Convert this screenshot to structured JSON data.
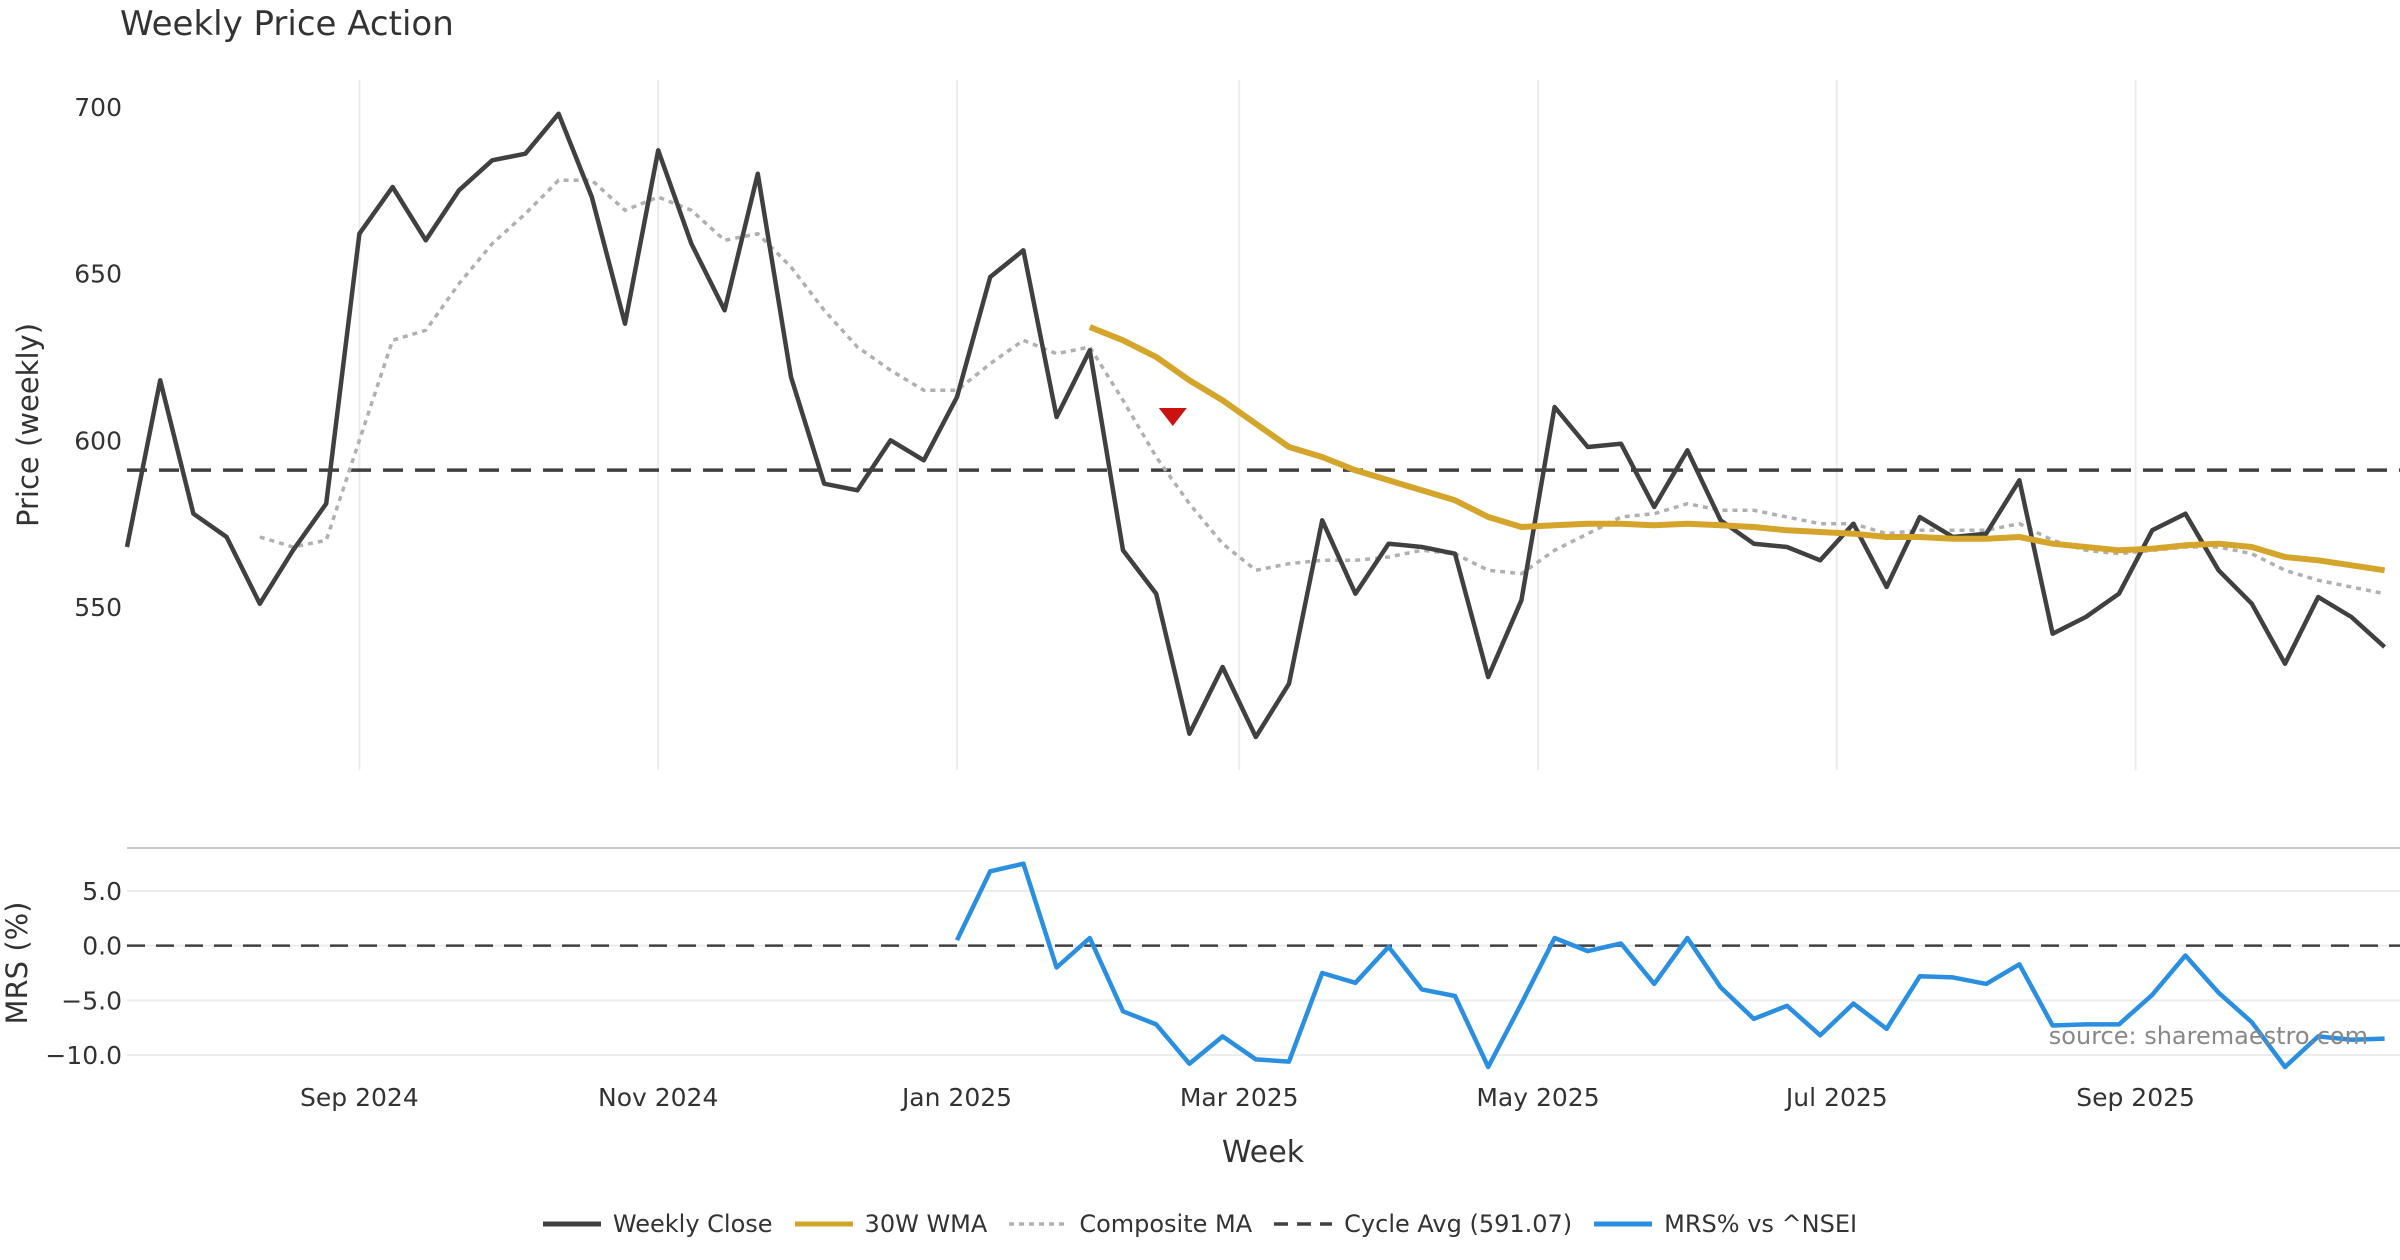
{
  "chart_data": {
    "title": "Weekly Price Action",
    "source_text": "source: sharemaestro.com",
    "xlabel": "Week",
    "x_tick_labels": [
      "Sep 2024",
      "Nov 2024",
      "Jan 2025",
      "Mar 2025",
      "May 2025",
      "Jul 2025",
      "Sep 2025"
    ],
    "x_tick_weeks": [
      7,
      16,
      25,
      33.5,
      42.5,
      51.5,
      60.5
    ],
    "price_panel": {
      "type": "line",
      "ylabel": "Price (weekly)",
      "ylim": [
        502,
        710
      ],
      "y_ticks": [
        550,
        600,
        650,
        700
      ],
      "cycle_avg": 591.07,
      "signal_marker": {
        "week": 31.5,
        "value": 607,
        "type": "sell"
      },
      "weekly_close": [
        568,
        618,
        578,
        571,
        551,
        567,
        581,
        662,
        676,
        660,
        675,
        684,
        686,
        698,
        673,
        635,
        687,
        659,
        639,
        680,
        619,
        587,
        585,
        600,
        594,
        613,
        649,
        657,
        607,
        627,
        567,
        554,
        512,
        532,
        511,
        527,
        576,
        554,
        569,
        568,
        566,
        529,
        552,
        610,
        598,
        599,
        580,
        597,
        576,
        569,
        568,
        564,
        575,
        556,
        577,
        571,
        572,
        588,
        542,
        547,
        554,
        573,
        578,
        561,
        551,
        533,
        553,
        547,
        538
      ],
      "wma_30w": [
        null,
        null,
        null,
        null,
        null,
        null,
        null,
        null,
        null,
        null,
        null,
        null,
        null,
        null,
        null,
        null,
        null,
        null,
        null,
        null,
        null,
        null,
        null,
        null,
        null,
        null,
        null,
        null,
        null,
        634,
        630,
        625,
        618,
        612,
        605,
        598,
        595,
        591,
        588,
        585,
        582,
        577,
        574,
        574.5,
        575,
        575,
        574.5,
        575,
        574.5,
        574,
        573,
        572.5,
        572,
        571,
        571,
        570.5,
        570.5,
        571,
        569,
        568,
        567,
        567.5,
        568.5,
        569,
        568,
        565,
        564,
        562.5,
        561
      ],
      "composite_ma": [
        null,
        null,
        null,
        null,
        571,
        568,
        570,
        600,
        630,
        633,
        647,
        659,
        668,
        678,
        678,
        669,
        673,
        669,
        660,
        662,
        652,
        639,
        628,
        621,
        615,
        615,
        623,
        630,
        626,
        628,
        612,
        595,
        581,
        569,
        561,
        563,
        564,
        564,
        565,
        567,
        566,
        561,
        560,
        567,
        572,
        577,
        578,
        581,
        579,
        579,
        577,
        575,
        575,
        572,
        573,
        573,
        573,
        575,
        570,
        567,
        566,
        567,
        568,
        568,
        566,
        561,
        558,
        556,
        554
      ]
    },
    "mrs_panel": {
      "type": "line",
      "ylabel": "MRS (%)",
      "ylim": [
        -12,
        9
      ],
      "y_ticks": [
        5.0,
        0.0,
        -5.0,
        -10.0
      ],
      "y_tick_labels": [
        "5.0",
        "0.0",
        "−5.0",
        "−10.0"
      ],
      "zero_line": 0.0,
      "mrs_vs_nsei": [
        null,
        null,
        null,
        null,
        null,
        null,
        null,
        null,
        null,
        null,
        null,
        null,
        null,
        null,
        null,
        null,
        null,
        null,
        null,
        null,
        null,
        null,
        null,
        null,
        null,
        0.5,
        6.8,
        7.5,
        -2.0,
        0.7,
        -6.0,
        -7.2,
        -10.8,
        -8.3,
        -10.4,
        -10.6,
        -2.5,
        -3.4,
        -0.1,
        -4.0,
        -4.6,
        -11.1,
        -5.3,
        0.7,
        -0.5,
        0.2,
        -3.5,
        0.7,
        -3.8,
        -6.7,
        -5.5,
        -8.2,
        -5.3,
        -7.6,
        -2.8,
        -2.9,
        -3.5,
        -1.7,
        -7.3,
        -7.2,
        -7.2,
        -4.5,
        -0.9,
        -4.3,
        -7.0,
        -11.1,
        -8.3,
        -8.6,
        -8.5
      ]
    },
    "legend": [
      {
        "label": "Weekly Close",
        "color": "#404040",
        "style": "solid"
      },
      {
        "label": "30W WMA",
        "color": "#d4a52a",
        "style": "solid"
      },
      {
        "label": "Composite MA",
        "color": "#b0b0b0",
        "style": "dotted"
      },
      {
        "label": "Cycle Avg (591.07)",
        "color": "#404040",
        "style": "dashed"
      },
      {
        "label": "MRS% vs ^NSEI",
        "color": "#2a8fe0",
        "style": "solid"
      }
    ]
  }
}
